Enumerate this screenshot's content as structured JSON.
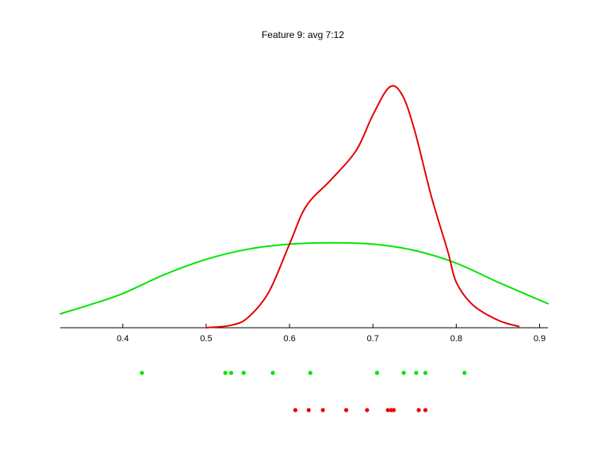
{
  "chart_data": {
    "type": "line",
    "title": "Feature 9: avg 7:12",
    "xlabel": "",
    "ylabel": "",
    "xlim": [
      0.325,
      0.91
    ],
    "ylim": [
      0,
      1
    ],
    "grid": false,
    "x_ticks": [
      0.4,
      0.5,
      0.6,
      0.7,
      0.8,
      0.9
    ],
    "x_tick_labels": [
      "0.4",
      "0.5",
      "0.6",
      "0.7",
      "0.8",
      "0.9"
    ],
    "series": [
      {
        "color": "#00e600",
        "kind": "density",
        "points": [
          [
            0.325,
            0.055
          ],
          [
            0.36,
            0.09
          ],
          [
            0.4,
            0.135
          ],
          [
            0.45,
            0.21
          ],
          [
            0.5,
            0.27
          ],
          [
            0.55,
            0.31
          ],
          [
            0.6,
            0.33
          ],
          [
            0.65,
            0.335
          ],
          [
            0.7,
            0.33
          ],
          [
            0.75,
            0.305
          ],
          [
            0.8,
            0.255
          ],
          [
            0.85,
            0.18
          ],
          [
            0.91,
            0.095
          ]
        ]
      },
      {
        "color": "#e60000",
        "kind": "density",
        "points": [
          [
            0.5,
            0.0
          ],
          [
            0.53,
            0.01
          ],
          [
            0.55,
            0.04
          ],
          [
            0.575,
            0.14
          ],
          [
            0.6,
            0.33
          ],
          [
            0.62,
            0.48
          ],
          [
            0.65,
            0.585
          ],
          [
            0.68,
            0.7
          ],
          [
            0.7,
            0.84
          ],
          [
            0.72,
            0.95
          ],
          [
            0.735,
            0.92
          ],
          [
            0.75,
            0.78
          ],
          [
            0.77,
            0.52
          ],
          [
            0.79,
            0.3
          ],
          [
            0.8,
            0.18
          ],
          [
            0.82,
            0.09
          ],
          [
            0.85,
            0.03
          ],
          [
            0.875,
            0.005
          ]
        ]
      }
    ],
    "rug": [
      {
        "color": "#00e600",
        "values": [
          0.423,
          0.523,
          0.53,
          0.545,
          0.58,
          0.625,
          0.705,
          0.737,
          0.752,
          0.763,
          0.81
        ]
      },
      {
        "color": "#e60000",
        "values": [
          0.607,
          0.623,
          0.64,
          0.668,
          0.693,
          0.718,
          0.722,
          0.725,
          0.755,
          0.763
        ]
      }
    ]
  }
}
